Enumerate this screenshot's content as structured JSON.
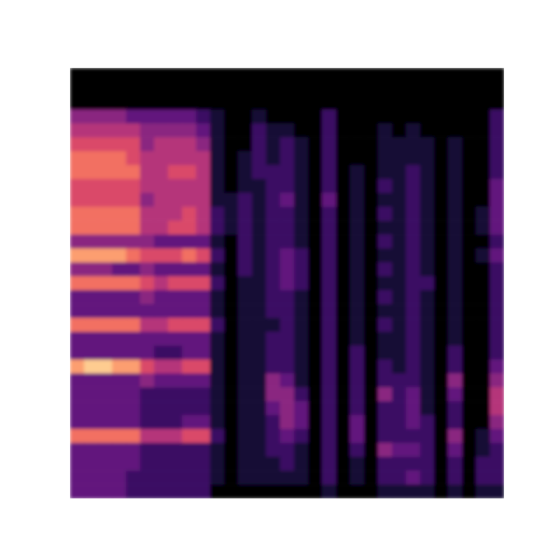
{
  "chart_data": {
    "type": "heatmap",
    "color": "magma",
    "tick_labels": false,
    "color_range": [
      0,
      10
    ],
    "cells": [
      [
        0,
        0,
        0,
        0,
        0,
        0,
        0,
        0,
        0,
        0,
        0,
        0,
        0,
        0,
        0,
        0,
        0,
        0,
        0,
        0,
        0,
        0,
        0,
        0,
        0,
        0,
        0,
        0,
        0,
        0,
        0
      ],
      [
        0,
        0,
        0,
        0,
        0,
        0,
        0,
        0,
        0,
        0,
        0,
        0,
        0,
        0,
        0,
        0,
        0,
        0,
        0,
        0,
        0,
        0,
        0,
        0,
        0,
        0,
        0,
        0,
        0,
        0,
        0
      ],
      [
        0,
        0,
        0,
        0,
        0,
        0,
        0,
        0,
        0,
        0,
        0,
        0,
        0,
        0,
        0,
        0,
        0,
        0,
        0,
        0,
        0,
        0,
        0,
        0,
        0,
        0,
        0,
        0,
        0,
        0,
        0
      ],
      [
        4,
        4,
        4,
        4,
        3,
        3,
        3,
        3,
        3,
        2,
        1,
        0,
        0,
        1,
        0,
        0,
        0,
        0,
        2,
        0,
        0,
        0,
        0,
        0,
        0,
        0,
        0,
        0,
        0,
        0,
        2
      ],
      [
        5,
        5,
        5,
        5,
        5,
        4,
        4,
        4,
        4,
        3,
        1,
        0,
        0,
        2,
        1,
        1,
        0,
        0,
        2,
        0,
        0,
        0,
        1,
        0,
        1,
        0,
        0,
        0,
        0,
        0,
        2
      ],
      [
        6,
        6,
        6,
        6,
        6,
        4,
        5,
        5,
        5,
        4,
        1,
        0,
        0,
        2,
        1,
        2,
        1,
        0,
        2,
        0,
        0,
        0,
        1,
        1,
        1,
        1,
        0,
        1,
        0,
        0,
        2
      ],
      [
        7,
        7,
        7,
        7,
        6,
        5,
        5,
        5,
        5,
        5,
        1,
        0,
        1,
        2,
        1,
        2,
        1,
        0,
        2,
        0,
        0,
        0,
        1,
        1,
        1,
        1,
        0,
        1,
        0,
        0,
        2
      ],
      [
        7,
        7,
        7,
        7,
        7,
        5,
        5,
        6,
        6,
        5,
        1,
        0,
        1,
        2,
        2,
        2,
        1,
        0,
        2,
        0,
        1,
        0,
        1,
        1,
        2,
        1,
        0,
        1,
        0,
        0,
        2
      ],
      [
        6,
        6,
        6,
        6,
        6,
        5,
        5,
        5,
        5,
        5,
        1,
        0,
        1,
        1,
        2,
        2,
        1,
        0,
        2,
        0,
        1,
        0,
        2,
        1,
        2,
        1,
        0,
        1,
        0,
        0,
        3
      ],
      [
        6,
        6,
        6,
        6,
        6,
        4,
        5,
        5,
        5,
        5,
        1,
        1,
        2,
        1,
        2,
        3,
        1,
        0,
        3,
        0,
        1,
        0,
        1,
        1,
        2,
        1,
        0,
        1,
        0,
        0,
        3
      ],
      [
        7,
        7,
        7,
        7,
        7,
        5,
        5,
        5,
        6,
        5,
        2,
        1,
        2,
        1,
        2,
        2,
        1,
        0,
        2,
        0,
        1,
        0,
        2,
        1,
        2,
        1,
        0,
        1,
        0,
        1,
        3
      ],
      [
        7,
        7,
        7,
        7,
        7,
        5,
        5,
        6,
        6,
        5,
        2,
        1,
        2,
        1,
        2,
        2,
        1,
        0,
        2,
        0,
        1,
        0,
        1,
        1,
        2,
        1,
        0,
        1,
        0,
        1,
        3
      ],
      [
        4,
        4,
        4,
        4,
        4,
        4,
        3,
        3,
        3,
        3,
        1,
        0,
        2,
        1,
        2,
        2,
        1,
        0,
        2,
        0,
        1,
        0,
        2,
        1,
        2,
        1,
        0,
        1,
        0,
        0,
        2
      ],
      [
        8,
        8,
        8,
        8,
        7,
        6,
        6,
        6,
        7,
        6,
        2,
        0,
        2,
        1,
        2,
        3,
        2,
        0,
        2,
        0,
        1,
        0,
        1,
        1,
        2,
        1,
        0,
        1,
        0,
        1,
        3
      ],
      [
        4,
        4,
        4,
        3,
        3,
        4,
        3,
        3,
        3,
        3,
        1,
        0,
        2,
        1,
        2,
        3,
        2,
        0,
        2,
        0,
        1,
        0,
        2,
        1,
        2,
        1,
        0,
        1,
        0,
        0,
        2
      ],
      [
        7,
        7,
        7,
        7,
        7,
        6,
        5,
        6,
        6,
        6,
        2,
        0,
        1,
        1,
        2,
        3,
        2,
        0,
        2,
        0,
        1,
        0,
        1,
        1,
        2,
        2,
        0,
        1,
        0,
        0,
        2
      ],
      [
        3,
        3,
        3,
        3,
        3,
        4,
        3,
        3,
        3,
        3,
        1,
        0,
        1,
        1,
        2,
        2,
        1,
        0,
        2,
        0,
        1,
        0,
        2,
        1,
        2,
        1,
        0,
        1,
        0,
        0,
        2
      ],
      [
        3,
        3,
        3,
        3,
        3,
        3,
        3,
        3,
        3,
        3,
        1,
        0,
        1,
        1,
        2,
        2,
        1,
        0,
        2,
        0,
        1,
        0,
        1,
        1,
        2,
        1,
        0,
        1,
        0,
        0,
        2
      ],
      [
        7,
        7,
        7,
        7,
        7,
        5,
        5,
        6,
        6,
        6,
        2,
        0,
        1,
        1,
        1,
        2,
        1,
        0,
        2,
        0,
        1,
        0,
        2,
        1,
        2,
        1,
        0,
        1,
        0,
        0,
        2
      ],
      [
        3,
        3,
        3,
        3,
        3,
        3,
        3,
        3,
        3,
        3,
        1,
        0,
        1,
        1,
        2,
        2,
        1,
        0,
        2,
        0,
        1,
        0,
        1,
        1,
        2,
        1,
        0,
        1,
        0,
        0,
        2
      ],
      [
        3,
        3,
        3,
        3,
        3,
        3,
        2,
        2,
        3,
        3,
        1,
        0,
        1,
        1,
        2,
        2,
        1,
        0,
        2,
        0,
        2,
        0,
        1,
        1,
        2,
        1,
        0,
        2,
        0,
        0,
        2
      ],
      [
        8,
        9,
        9,
        8,
        8,
        6,
        5,
        5,
        6,
        6,
        1,
        0,
        1,
        1,
        2,
        2,
        1,
        0,
        2,
        0,
        2,
        0,
        2,
        1,
        2,
        1,
        0,
        2,
        0,
        0,
        3
      ],
      [
        3,
        3,
        3,
        3,
        3,
        4,
        3,
        3,
        3,
        3,
        1,
        0,
        1,
        1,
        4,
        3,
        1,
        0,
        2,
        0,
        2,
        0,
        2,
        2,
        2,
        1,
        0,
        4,
        0,
        0,
        4
      ],
      [
        3,
        3,
        3,
        3,
        3,
        2,
        2,
        2,
        2,
        2,
        1,
        0,
        1,
        1,
        4,
        4,
        2,
        0,
        2,
        0,
        2,
        0,
        4,
        2,
        3,
        1,
        0,
        3,
        0,
        0,
        5
      ],
      [
        3,
        3,
        3,
        3,
        3,
        2,
        2,
        2,
        2,
        2,
        1,
        0,
        1,
        1,
        3,
        4,
        3,
        0,
        2,
        0,
        2,
        0,
        2,
        2,
        3,
        1,
        0,
        2,
        0,
        0,
        5
      ],
      [
        3,
        3,
        3,
        3,
        3,
        2,
        2,
        2,
        3,
        3,
        1,
        0,
        1,
        1,
        2,
        4,
        3,
        0,
        2,
        0,
        3,
        0,
        2,
        2,
        3,
        2,
        0,
        2,
        0,
        0,
        4
      ],
      [
        7,
        7,
        7,
        7,
        7,
        5,
        5,
        5,
        6,
        6,
        2,
        0,
        1,
        1,
        2,
        3,
        2,
        0,
        2,
        0,
        3,
        0,
        2,
        2,
        2,
        2,
        0,
        4,
        0,
        1,
        3
      ],
      [
        3,
        3,
        3,
        3,
        3,
        2,
        2,
        2,
        2,
        2,
        1,
        0,
        1,
        1,
        2,
        2,
        1,
        0,
        2,
        0,
        2,
        0,
        4,
        3,
        3,
        2,
        0,
        3,
        0,
        1,
        2
      ],
      [
        3,
        3,
        3,
        3,
        3,
        2,
        2,
        2,
        2,
        2,
        1,
        0,
        1,
        1,
        1,
        2,
        1,
        0,
        2,
        0,
        1,
        0,
        2,
        2,
        2,
        2,
        0,
        2,
        0,
        2,
        2
      ],
      [
        3,
        3,
        3,
        3,
        2,
        2,
        2,
        2,
        2,
        2,
        1,
        0,
        1,
        1,
        1,
        1,
        1,
        0,
        2,
        0,
        1,
        0,
        2,
        2,
        3,
        2,
        0,
        2,
        0,
        2,
        2
      ],
      [
        3,
        3,
        3,
        3,
        2,
        2,
        2,
        2,
        2,
        2,
        0,
        0,
        0,
        0,
        0,
        0,
        0,
        0,
        1,
        0,
        0,
        0,
        1,
        1,
        1,
        1,
        0,
        1,
        0,
        1,
        1
      ]
    ]
  }
}
